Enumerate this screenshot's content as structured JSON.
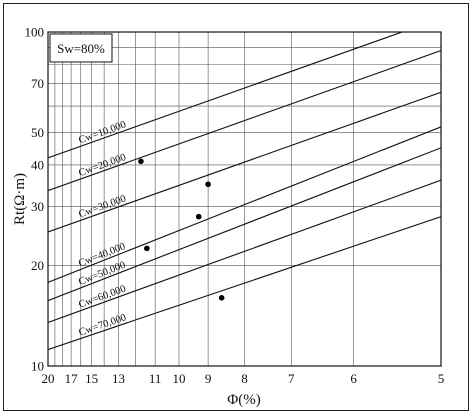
{
  "chart_data": {
    "type": "scatter",
    "title": "",
    "xlabel": "Φ(%)",
    "ylabel": "Rt(Ω·m)",
    "x_scale": "reciprocal",
    "y_scale": "log",
    "xlim": [
      20,
      5
    ],
    "ylim": [
      10,
      100
    ],
    "x_ticks": [
      20,
      17,
      15,
      13,
      11,
      10,
      9,
      8,
      7,
      6,
      5
    ],
    "y_ticks": [
      10,
      20,
      30,
      40,
      50,
      70,
      100
    ],
    "grid": true,
    "annotation_box": "Sw=80%",
    "curves": [
      {
        "label": "Cw=10,000",
        "points": [
          [
            20,
            42
          ],
          [
            5,
            110
          ]
        ]
      },
      {
        "label": "Cw=20,000",
        "points": [
          [
            20,
            33.5
          ],
          [
            5,
            88
          ]
        ]
      },
      {
        "label": "Cw=30,000",
        "points": [
          [
            20,
            25.2
          ],
          [
            5,
            66
          ]
        ]
      },
      {
        "label": "Cw=40,000",
        "points": [
          [
            20,
            17.8
          ],
          [
            5,
            52
          ]
        ]
      },
      {
        "label": "Cw=50,000",
        "points": [
          [
            20,
            15.7
          ],
          [
            5,
            45
          ]
        ]
      },
      {
        "label": "Cw=60,000",
        "points": [
          [
            20,
            13.5
          ],
          [
            5,
            36
          ]
        ]
      },
      {
        "label": "Cw=70,000",
        "points": [
          [
            20,
            11.2
          ],
          [
            5,
            28
          ]
        ]
      }
    ],
    "points": [
      {
        "x": 11.7,
        "y": 41
      },
      {
        "x": 9.0,
        "y": 35
      },
      {
        "x": 9.3,
        "y": 28
      },
      {
        "x": 11.4,
        "y": 22.5
      },
      {
        "x": 8.6,
        "y": 16
      }
    ]
  }
}
